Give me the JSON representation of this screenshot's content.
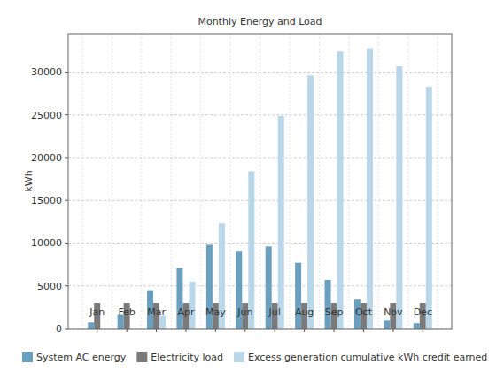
{
  "chart_data": {
    "type": "bar",
    "title": "Monthly Energy and Load",
    "y_label": "kWh",
    "categories": [
      "Jan",
      "Feb",
      "Mar",
      "Apr",
      "May",
      "Jun",
      "Jul",
      "Aug",
      "Sep",
      "Oct",
      "Nov",
      "Dec"
    ],
    "series": [
      {
        "name": "System AC energy",
        "color": "#6a9fbf",
        "values": [
          700,
          1600,
          4500,
          7100,
          9800,
          9100,
          9600,
          7700,
          5700,
          3400,
          1000,
          600
        ]
      },
      {
        "name": "Electricity load",
        "color": "#7a7a7a",
        "values": [
          3000,
          3000,
          3000,
          3000,
          3000,
          3000,
          3000,
          3000,
          3000,
          3000,
          3000,
          3000
        ]
      },
      {
        "name": "Excess generation cumulative kWh credit earned",
        "color": "#b9d7e8",
        "values": [
          0,
          0,
          1500,
          5500,
          12300,
          18400,
          24900,
          29600,
          32400,
          32800,
          30700,
          28300
        ]
      }
    ],
    "ylim": [
      0,
      34500
    ],
    "yticks": [
      0,
      5000,
      10000,
      15000,
      20000,
      25000,
      30000
    ],
    "grid": true,
    "legend": "bottom"
  }
}
